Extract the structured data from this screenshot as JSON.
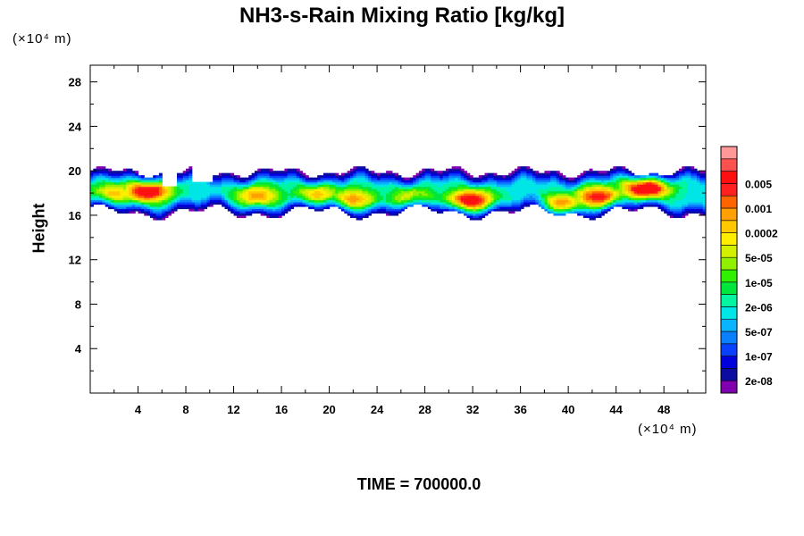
{
  "chart_data": {
    "type": "heatmap",
    "title": "NH3-s-Rain Mixing Ratio [kg/kg]",
    "ylabel": "Height",
    "xlabel": "",
    "y_unit": "(×10⁴ m)",
    "x_unit": "(×10⁴ m)",
    "footer": "TIME = 700000.0",
    "xlim": [
      0,
      51.5
    ],
    "ylim": [
      0,
      29.5
    ],
    "x_ticks": [
      4,
      8,
      12,
      16,
      20,
      24,
      28,
      32,
      36,
      40,
      44,
      48
    ],
    "y_ticks": [
      4,
      8,
      12,
      16,
      20,
      24,
      28
    ],
    "colorbar": {
      "colors": [
        "#8000b0",
        "#0c0ca0",
        "#0000dc",
        "#0a40ff",
        "#0a80ff",
        "#0ab4ff",
        "#00e6e6",
        "#00f5a0",
        "#00e63c",
        "#30f000",
        "#90f000",
        "#d2f000",
        "#ffee00",
        "#ffc800",
        "#ffa000",
        "#ff6400",
        "#ff2020",
        "#ff1010",
        "#ff5050",
        "#ff9898"
      ],
      "labels": [
        "2e-08",
        "1e-07",
        "5e-07",
        "2e-06",
        "1e-05",
        "5e-05",
        "0.0002",
        "0.001",
        "0.005"
      ]
    },
    "band": {
      "note": "cloud layer of mixing ratio between heights ~16 and ~20.3",
      "hotspots": [
        {
          "x": 2.0,
          "y": 18.0,
          "level": 10
        },
        {
          "x": 4.8,
          "y": 18.2,
          "level": 16
        },
        {
          "x": 14.0,
          "y": 17.8,
          "level": 11
        },
        {
          "x": 19.0,
          "y": 17.9,
          "level": 10
        },
        {
          "x": 22.0,
          "y": 17.5,
          "level": 11
        },
        {
          "x": 27.0,
          "y": 17.6,
          "level": 9
        },
        {
          "x": 31.8,
          "y": 17.4,
          "level": 15
        },
        {
          "x": 39.5,
          "y": 17.0,
          "level": 12
        },
        {
          "x": 42.5,
          "y": 17.7,
          "level": 14
        },
        {
          "x": 46.5,
          "y": 18.5,
          "level": 17
        }
      ]
    }
  }
}
